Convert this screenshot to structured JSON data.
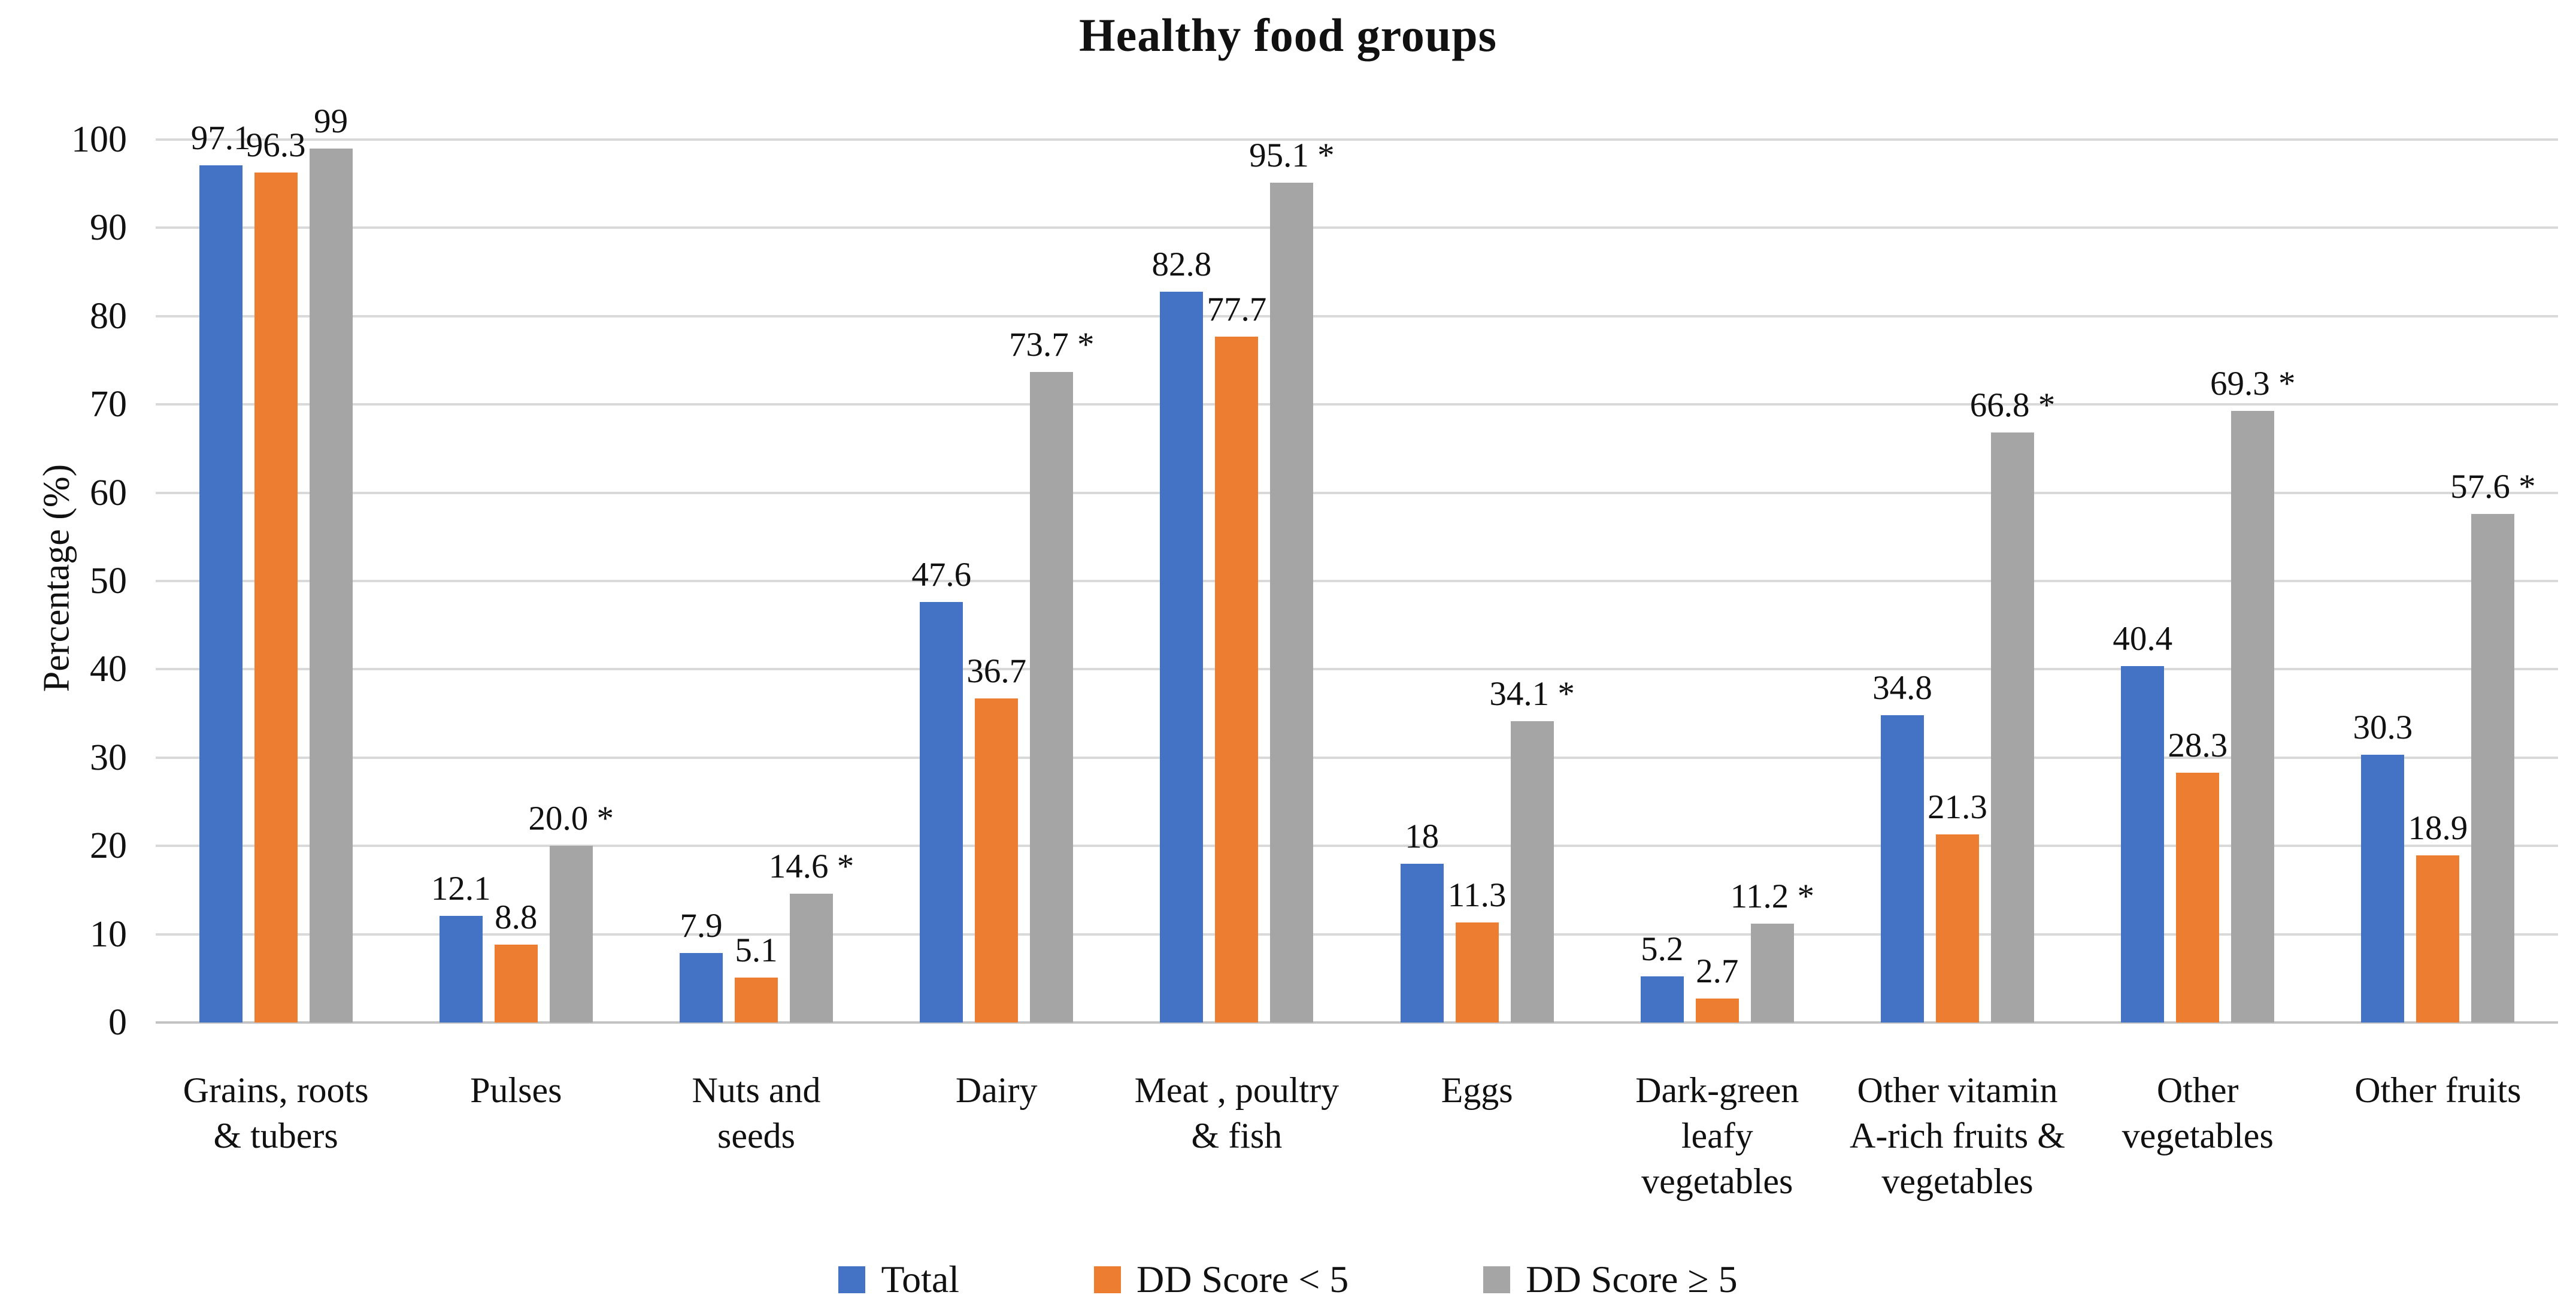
{
  "chart_data": {
    "type": "bar",
    "title": "Healthy food groups",
    "xlabel": "",
    "ylabel": "Percentage (%)",
    "ylim": [
      0,
      100
    ],
    "yticks": [
      0,
      10,
      20,
      30,
      40,
      50,
      60,
      70,
      80,
      90,
      100
    ],
    "grid": true,
    "legend_position": "bottom",
    "categories": [
      "Grains, roots\n& tubers",
      "Pulses",
      "Nuts and\nseeds",
      "Dairy",
      "Meat , poultry\n& fish",
      "Eggs",
      "Dark-green\nleafy\nvegetables",
      "Other vitamin\nA-rich fruits &\nvegetables",
      "Other\nvegetables",
      "Other fruits"
    ],
    "series": [
      {
        "name": "Total",
        "color": "#4472C4",
        "values": [
          97.1,
          12.1,
          7.9,
          47.6,
          82.8,
          18,
          5.2,
          34.8,
          40.4,
          30.3
        ],
        "labels": [
          "97.1",
          "12.1",
          "7.9",
          "47.6",
          "82.8",
          "18",
          "5.2",
          "34.8",
          "40.4",
          "30.3"
        ]
      },
      {
        "name": "DD Score < 5",
        "color": "#ED7D31",
        "values": [
          96.3,
          8.8,
          5.1,
          36.7,
          77.7,
          11.3,
          2.7,
          21.3,
          28.3,
          18.9
        ],
        "labels": [
          "96.3",
          "8.8",
          "5.1",
          "36.7",
          "77.7",
          "11.3",
          "2.7",
          "21.3",
          "28.3",
          "18.9"
        ]
      },
      {
        "name": "DD Score ≥ 5",
        "color": "#A5A5A5",
        "values": [
          99,
          20.0,
          14.6,
          73.7,
          95.1,
          34.1,
          11.2,
          66.8,
          69.3,
          57.6
        ],
        "labels": [
          "99",
          "20.0 *",
          "14.6 *",
          "73.7 *",
          "95.1 *",
          "34.1 *",
          "11.2 *",
          "66.8 *",
          "69.3 *",
          "57.6 *"
        ]
      }
    ],
    "significance_note_symbol": "*"
  },
  "colors": {
    "background": "#ffffff",
    "gridline": "#d9d9d9",
    "axis_line": "#c3c3c3",
    "text": "#111111"
  }
}
